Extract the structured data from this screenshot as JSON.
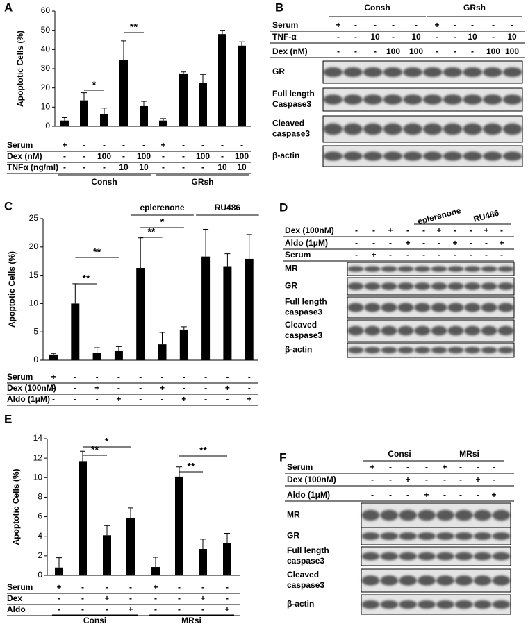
{
  "panels": [
    "A",
    "B",
    "C",
    "D",
    "E",
    "F"
  ],
  "chart_data": [
    {
      "type": "bar",
      "ylabel": "Apoptotic Cells (%)",
      "color": "#000000",
      "ylim": [
        0,
        60
      ],
      "yticks": [
        0,
        10,
        20,
        30,
        40,
        50,
        60
      ],
      "values": [
        3,
        13.5,
        6.5,
        34.5,
        10.5,
        3,
        27.5,
        22.5,
        48,
        42
      ],
      "errors": [
        1.5,
        4,
        3,
        10,
        2.5,
        1,
        0.8,
        4.5,
        2,
        2
      ],
      "table": [
        {
          "label": "Serum",
          "cells": [
            "+",
            "-",
            "-",
            "-",
            "-",
            "+",
            "-",
            "-",
            "-",
            "-"
          ]
        },
        {
          "label": "Dex (nM)",
          "cells": [
            "-",
            "-",
            "100",
            "-",
            "100",
            "-",
            "-",
            "100",
            "-",
            "100"
          ]
        },
        {
          "label": "TNFα (ng/ml)",
          "cells": [
            "-",
            "-",
            "-",
            "10",
            "10",
            "-",
            "-",
            "-",
            "10",
            "10"
          ]
        }
      ],
      "groups": [
        "Consh",
        "GRsh"
      ],
      "significance": [
        "*",
        "**"
      ]
    },
    {
      "type": "bar",
      "ylabel": "Apoptotic Cells (%)",
      "color": "#000000",
      "ylim": [
        0,
        25
      ],
      "yticks": [
        0,
        5,
        10,
        15,
        20,
        25
      ],
      "values": [
        1.0,
        10.0,
        1.3,
        1.6,
        16.3,
        2.8,
        5.4,
        18.3,
        16.6,
        17.9
      ],
      "errors": [
        0.2,
        3.5,
        0.9,
        0.8,
        5.3,
        2.1,
        0.5,
        4.8,
        2.2,
        4.3
      ],
      "table": [
        {
          "label": "Serum",
          "cells": [
            "+",
            "-",
            "-",
            "-",
            "-",
            "-",
            "-",
            "-",
            "-",
            "-"
          ]
        },
        {
          "label": "Dex (100nM)",
          "cells": [
            "-",
            "-",
            "+",
            "-",
            "-",
            "+",
            "-",
            "-",
            "+",
            "-"
          ]
        },
        {
          "label": "Aldo (1μM)",
          "cells": [
            "-",
            "-",
            "-",
            "+",
            "-",
            "-",
            "+",
            "-",
            "-",
            "+"
          ]
        }
      ],
      "top_groups": [
        "eplerenone",
        "RU486"
      ],
      "significance": [
        "**",
        "**",
        "*",
        "**"
      ]
    },
    {
      "type": "bar",
      "ylabel": "Apoptotic Cells (%)",
      "color": "#000000",
      "ylim": [
        0,
        14
      ],
      "yticks": [
        0,
        2,
        4,
        6,
        8,
        10,
        12,
        14
      ],
      "values": [
        0.8,
        11.7,
        4.1,
        5.9,
        0.85,
        10.1,
        2.7,
        3.3
      ],
      "errors": [
        1.0,
        1.0,
        1.0,
        1.0,
        1.0,
        1.0,
        1.0,
        1.0
      ],
      "table": [
        {
          "label": "Serum",
          "cells": [
            "+",
            "-",
            "-",
            "-",
            "+",
            "-",
            "-",
            "-"
          ]
        },
        {
          "label": "Dex",
          "cells": [
            "-",
            "-",
            "+",
            "-",
            "-",
            "-",
            "+",
            "-"
          ]
        },
        {
          "label": "Aldo",
          "cells": [
            "-",
            "-",
            "-",
            "+",
            "-",
            "-",
            "-",
            "+"
          ]
        }
      ],
      "groups": [
        "Consi",
        "MRsi"
      ],
      "significance": [
        "**",
        "*",
        "**",
        "**"
      ]
    }
  ],
  "blots": [
    {
      "groups": [
        "Consh",
        "GRsh"
      ],
      "rows": [
        {
          "label": "Serum",
          "cells": [
            "+",
            "-",
            "-",
            "-",
            "-",
            "+",
            "-",
            "-",
            "-",
            "-"
          ]
        },
        {
          "label": "TNF-α",
          "cells": [
            "-",
            "-",
            "10",
            "-",
            "10",
            "-",
            "-",
            "10",
            "-",
            "10"
          ]
        },
        {
          "label": "Dex (nM)",
          "cells": [
            "-",
            "-",
            "-",
            "100",
            "100",
            "-",
            "-",
            "-",
            "100",
            "100"
          ]
        }
      ],
      "bands": [
        [
          "GR"
        ],
        [
          "Full length",
          "Caspase3"
        ],
        [
          "Cleaved",
          "caspase3"
        ],
        [
          "β-actin"
        ]
      ]
    },
    {
      "groups": [
        "eplerenone",
        "RU486"
      ],
      "rows": [
        {
          "label": "Dex (100nM)",
          "cells": [
            "-",
            "-",
            "+",
            "-",
            "-",
            "+",
            "-",
            "-",
            "+",
            "-"
          ]
        },
        {
          "label": "Aldo (1μM)",
          "cells": [
            "-",
            "-",
            "-",
            "+",
            "-",
            "-",
            "+",
            "-",
            "-",
            "+"
          ]
        },
        {
          "label": "Serum",
          "cells": [
            "-",
            "+",
            "-",
            "-",
            "-",
            "-",
            "-",
            "-",
            "-",
            "-"
          ]
        }
      ],
      "bands": [
        [
          "MR"
        ],
        [
          "GR"
        ],
        [
          "Full length",
          "caspase3"
        ],
        [
          "Cleaved",
          "caspase3"
        ],
        [
          "β-actin"
        ]
      ]
    },
    {
      "groups": [
        "Consi",
        "MRsi"
      ],
      "rows": [
        {
          "label": "Serum",
          "cells": [
            "+",
            "-",
            "-",
            "-",
            "+",
            "-",
            "-",
            "-"
          ]
        },
        {
          "label": "Dex (100nM)",
          "cells": [
            "-",
            "-",
            "+",
            "-",
            "-",
            "-",
            "+",
            "-"
          ]
        },
        {
          "label": "Aldo (1μM)",
          "cells": [
            "-",
            "-",
            "-",
            "+",
            "-",
            "-",
            "-",
            "+"
          ]
        }
      ],
      "bands": [
        [
          "MR"
        ],
        [
          "GR"
        ],
        [
          "Full length",
          "caspase3"
        ],
        [
          "Cleaved",
          "caspase3"
        ],
        [
          "β-actin"
        ]
      ]
    }
  ]
}
